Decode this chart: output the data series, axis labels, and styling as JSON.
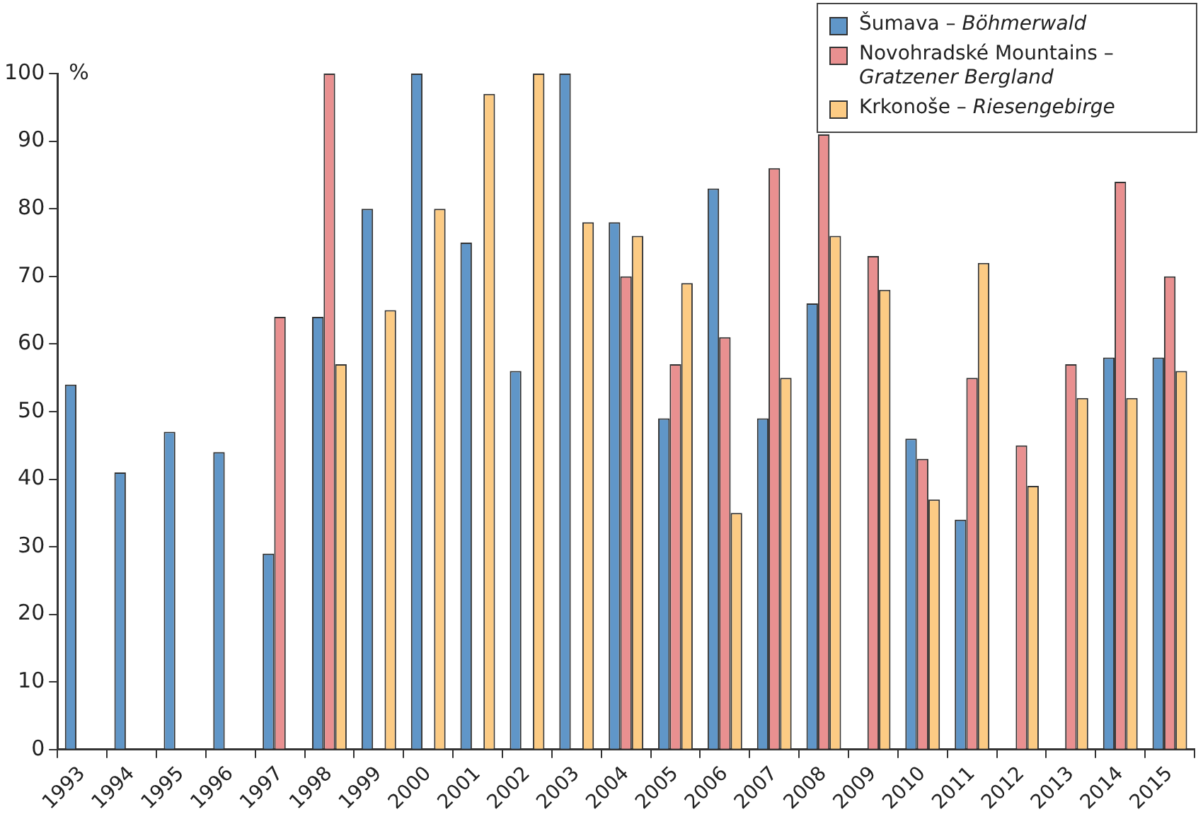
{
  "chart_data": {
    "type": "bar",
    "ylabel": "%",
    "categories": [
      "1993",
      "1994",
      "1995",
      "1996",
      "1997",
      "1998",
      "1999",
      "2000",
      "2001",
      "2002",
      "2003",
      "2004",
      "2005",
      "2006",
      "2007",
      "2008",
      "2009",
      "2010",
      "2011",
      "2012",
      "2013",
      "2014",
      "2015"
    ],
    "series": [
      {
        "name": "Šumava – Böhmerwald",
        "color": "#6096c8",
        "values": [
          54,
          41,
          47,
          44,
          29,
          64,
          80,
          100,
          75,
          56,
          100,
          78,
          49,
          83,
          49,
          66,
          null,
          46,
          34,
          null,
          null,
          58,
          58
        ]
      },
      {
        "name": "Novohradské Mountains – Gratzener Bergland",
        "color": "#e99090",
        "values": [
          null,
          null,
          null,
          null,
          64,
          100,
          null,
          null,
          null,
          null,
          null,
          70,
          57,
          61,
          86,
          91,
          73,
          43,
          55,
          45,
          57,
          84,
          70
        ]
      },
      {
        "name": "Krkonoše – Riesengebirge",
        "color": "#fccb84",
        "values": [
          null,
          null,
          null,
          null,
          null,
          57,
          65,
          80,
          97,
          100,
          78,
          76,
          69,
          35,
          55,
          76,
          68,
          37,
          72,
          39,
          52,
          52,
          56
        ]
      }
    ],
    "ylim": [
      0,
      100
    ],
    "yticks": [
      0,
      10,
      20,
      30,
      40,
      50,
      60,
      70,
      80,
      90,
      100
    ],
    "grid": false,
    "legend": "top right"
  }
}
